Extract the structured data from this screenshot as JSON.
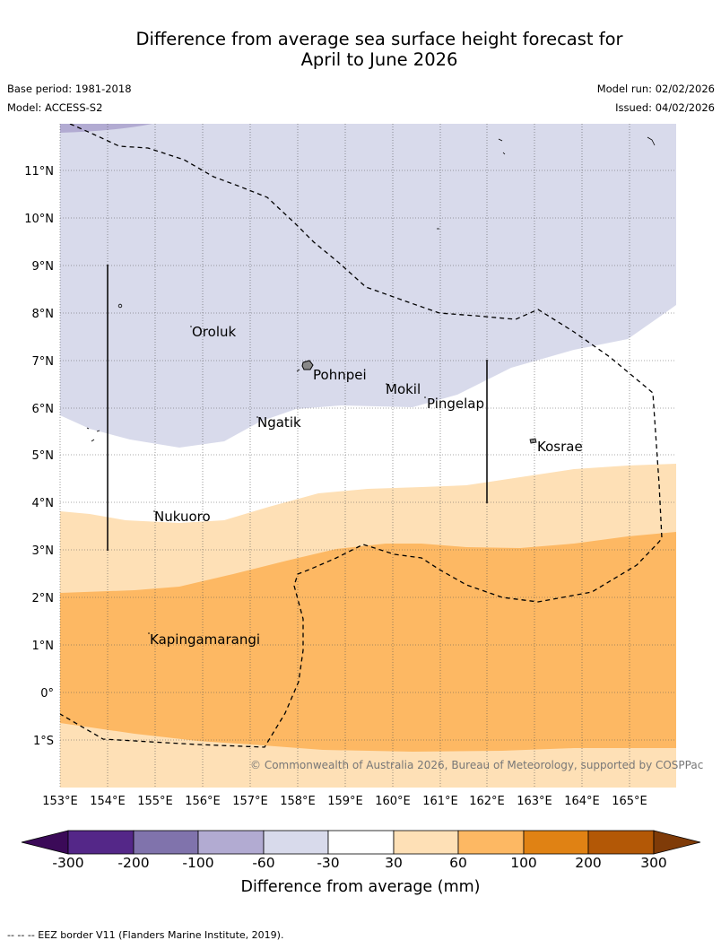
{
  "title": {
    "line1": "Difference from average sea surface height forecast for",
    "line2": "April to June 2026"
  },
  "meta": {
    "base_period": "Base period: 1981-2018",
    "model": "Model: ACCESS-S2",
    "model_run": "Model run: 02/02/2026",
    "issued": "Issued: 04/02/2026"
  },
  "map": {
    "lat_labels": [
      "11°N",
      "10°N",
      "9°N",
      "8°N",
      "7°N",
      "6°N",
      "5°N",
      "4°N",
      "3°N",
      "2°N",
      "1°N",
      "0°",
      "1°S"
    ],
    "lon_labels": [
      "153°E",
      "154°E",
      "155°E",
      "156°E",
      "157°E",
      "158°E",
      "159°E",
      "160°E",
      "161°E",
      "162°E",
      "163°E",
      "164°E",
      "165°E"
    ],
    "places": {
      "oroluk": "Oroluk",
      "pohnpei": "Pohnpei",
      "mokil": "Mokil",
      "pingelap": "Pingelap",
      "ngatik": "Ngatik",
      "kosrae": "Kosrae",
      "nukuoro": "Nukuoro",
      "kapingamarangi": "Kapingamarangi"
    },
    "copyright": "© Commonwealth of Australia 2026, Bureau of Meteorology, supported by COSPPac",
    "colors": {
      "band_m300": "#3b0a58",
      "band_m200": "#542788",
      "band_m100": "#8073ac",
      "band_m60": "#b2abd2",
      "band_m30": "#d8daeb",
      "band_p30": "#ffffff",
      "band_p60": "#fee0b6",
      "band_p100": "#fdb863",
      "band_p200": "#e08214",
      "band_p300": "#b35806",
      "band_over": "#7f3b08"
    }
  },
  "colorbar": {
    "ticks": [
      "-300",
      "-200",
      "-100",
      "-60",
      "-30",
      "30",
      "60",
      "100",
      "200",
      "300"
    ],
    "title": "Difference from average (mm)"
  },
  "footer": "--  --  -- EEZ border V11 (Flanders Marine Institute, 2019)."
}
